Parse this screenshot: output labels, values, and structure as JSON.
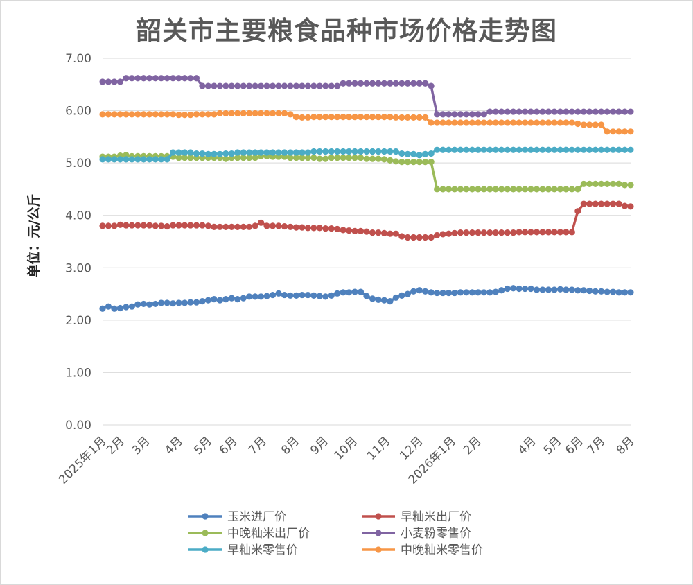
{
  "chart_data": {
    "type": "line",
    "title": "韶关市主要粮食品种市场价格走势图",
    "ylabel": "单位：元/公斤",
    "xlabel": "",
    "ylim": [
      0,
      7
    ],
    "yticks": [
      "0.00",
      "1.00",
      "2.00",
      "3.00",
      "4.00",
      "5.00",
      "6.00",
      "7.00"
    ],
    "xticks": [
      "2025年1月",
      "2月",
      "3月",
      "4月",
      "5月",
      "6月",
      "7月",
      "8月",
      "9月",
      "10月",
      "11月",
      "12月",
      "2026年1月",
      "2月",
      "4月",
      "5月",
      "6月",
      "7月",
      "8月"
    ],
    "grid": true,
    "legend_position": "bottom",
    "points_per_series": 91,
    "series": [
      {
        "name": "玉米进厂价",
        "color": "#4f81bd",
        "values": [
          2.22,
          2.26,
          2.22,
          2.23,
          2.25,
          2.26,
          2.3,
          2.31,
          2.3,
          2.31,
          2.33,
          2.33,
          2.32,
          2.33,
          2.33,
          2.34,
          2.34,
          2.36,
          2.38,
          2.4,
          2.38,
          2.4,
          2.42,
          2.4,
          2.42,
          2.45,
          2.45,
          2.45,
          2.46,
          2.48,
          2.51,
          2.48,
          2.47,
          2.47,
          2.48,
          2.48,
          2.47,
          2.46,
          2.45,
          2.47,
          2.51,
          2.53,
          2.53,
          2.54,
          2.54,
          2.46,
          2.41,
          2.39,
          2.38,
          2.36,
          2.43,
          2.47,
          2.5,
          2.55,
          2.57,
          2.55,
          2.53,
          2.52,
          2.52,
          2.52,
          2.52,
          2.53,
          2.53,
          2.53,
          2.53,
          2.53,
          2.53,
          2.54,
          2.57,
          2.6,
          2.61,
          2.6,
          2.6,
          2.6,
          2.58,
          2.58,
          2.58,
          2.58,
          2.59,
          2.58,
          2.58,
          2.57,
          2.57,
          2.56,
          2.55,
          2.55,
          2.54,
          2.54,
          2.53,
          2.53,
          2.53
        ]
      },
      {
        "name": "早籼米出厂价",
        "color": "#c0504d",
        "values": [
          3.8,
          3.8,
          3.8,
          3.82,
          3.81,
          3.81,
          3.81,
          3.81,
          3.81,
          3.8,
          3.8,
          3.79,
          3.81,
          3.81,
          3.81,
          3.81,
          3.81,
          3.81,
          3.8,
          3.78,
          3.78,
          3.78,
          3.78,
          3.78,
          3.78,
          3.78,
          3.8,
          3.86,
          3.8,
          3.8,
          3.8,
          3.79,
          3.78,
          3.77,
          3.77,
          3.76,
          3.76,
          3.76,
          3.75,
          3.75,
          3.74,
          3.72,
          3.71,
          3.7,
          3.7,
          3.69,
          3.67,
          3.67,
          3.66,
          3.65,
          3.65,
          3.6,
          3.58,
          3.58,
          3.58,
          3.58,
          3.58,
          3.62,
          3.64,
          3.65,
          3.66,
          3.67,
          3.67,
          3.67,
          3.67,
          3.67,
          3.67,
          3.67,
          3.67,
          3.67,
          3.67,
          3.68,
          3.68,
          3.68,
          3.68,
          3.68,
          3.68,
          3.68,
          3.68,
          3.68,
          3.68,
          4.08,
          4.22,
          4.22,
          4.22,
          4.22,
          4.22,
          4.22,
          4.22,
          4.18,
          4.17
        ]
      },
      {
        "name": "中晚籼米出厂价",
        "color": "#9bbb59",
        "values": [
          5.12,
          5.12,
          5.12,
          5.14,
          5.15,
          5.13,
          5.13,
          5.13,
          5.13,
          5.13,
          5.13,
          5.13,
          5.12,
          5.1,
          5.1,
          5.1,
          5.1,
          5.1,
          5.1,
          5.1,
          5.1,
          5.08,
          5.1,
          5.1,
          5.1,
          5.1,
          5.1,
          5.13,
          5.13,
          5.12,
          5.12,
          5.12,
          5.1,
          5.1,
          5.1,
          5.1,
          5.1,
          5.08,
          5.08,
          5.1,
          5.1,
          5.1,
          5.1,
          5.1,
          5.1,
          5.08,
          5.08,
          5.08,
          5.07,
          5.05,
          5.03,
          5.02,
          5.02,
          5.02,
          5.02,
          5.02,
          5.02,
          4.5,
          4.5,
          4.5,
          4.5,
          4.5,
          4.5,
          4.5,
          4.5,
          4.5,
          4.5,
          4.5,
          4.5,
          4.5,
          4.5,
          4.5,
          4.5,
          4.5,
          4.5,
          4.5,
          4.5,
          4.5,
          4.5,
          4.5,
          4.5,
          4.5,
          4.6,
          4.6,
          4.6,
          4.6,
          4.6,
          4.6,
          4.6,
          4.58,
          4.58
        ]
      },
      {
        "name": "小麦粉零售价",
        "color": "#8064a2",
        "values": [
          6.55,
          6.55,
          6.55,
          6.55,
          6.62,
          6.62,
          6.62,
          6.62,
          6.62,
          6.62,
          6.62,
          6.62,
          6.62,
          6.62,
          6.62,
          6.62,
          6.62,
          6.47,
          6.47,
          6.47,
          6.47,
          6.47,
          6.47,
          6.47,
          6.47,
          6.47,
          6.47,
          6.47,
          6.47,
          6.47,
          6.47,
          6.47,
          6.47,
          6.47,
          6.47,
          6.47,
          6.47,
          6.47,
          6.47,
          6.47,
          6.47,
          6.52,
          6.52,
          6.52,
          6.52,
          6.52,
          6.52,
          6.52,
          6.52,
          6.52,
          6.52,
          6.52,
          6.52,
          6.52,
          6.52,
          6.52,
          6.47,
          5.93,
          5.93,
          5.93,
          5.93,
          5.93,
          5.93,
          5.93,
          5.93,
          5.93,
          5.98,
          5.98,
          5.98,
          5.98,
          5.98,
          5.98,
          5.98,
          5.98,
          5.98,
          5.98,
          5.98,
          5.98,
          5.98,
          5.98,
          5.98,
          5.98,
          5.98,
          5.98,
          5.98,
          5.98,
          5.98,
          5.98,
          5.98,
          5.98,
          5.98
        ]
      },
      {
        "name": "早籼米零售价",
        "color": "#4bacc6",
        "values": [
          5.07,
          5.07,
          5.07,
          5.07,
          5.07,
          5.07,
          5.07,
          5.07,
          5.07,
          5.07,
          5.07,
          5.07,
          5.2,
          5.2,
          5.2,
          5.2,
          5.18,
          5.18,
          5.17,
          5.17,
          5.17,
          5.18,
          5.18,
          5.2,
          5.2,
          5.2,
          5.2,
          5.2,
          5.2,
          5.2,
          5.2,
          5.2,
          5.2,
          5.2,
          5.2,
          5.2,
          5.22,
          5.22,
          5.22,
          5.22,
          5.22,
          5.22,
          5.22,
          5.22,
          5.22,
          5.22,
          5.22,
          5.22,
          5.22,
          5.22,
          5.22,
          5.18,
          5.17,
          5.17,
          5.15,
          5.17,
          5.18,
          5.25,
          5.25,
          5.25,
          5.25,
          5.25,
          5.25,
          5.25,
          5.25,
          5.25,
          5.25,
          5.25,
          5.25,
          5.25,
          5.25,
          5.25,
          5.25,
          5.25,
          5.25,
          5.25,
          5.25,
          5.25,
          5.25,
          5.25,
          5.25,
          5.25,
          5.25,
          5.25,
          5.25,
          5.25,
          5.25,
          5.25,
          5.25,
          5.25,
          5.25
        ]
      },
      {
        "name": "中晚籼米零售价",
        "color": "#f79646",
        "values": [
          5.93,
          5.93,
          5.93,
          5.93,
          5.93,
          5.93,
          5.93,
          5.93,
          5.93,
          5.93,
          5.93,
          5.93,
          5.93,
          5.92,
          5.92,
          5.92,
          5.93,
          5.93,
          5.93,
          5.93,
          5.95,
          5.95,
          5.95,
          5.95,
          5.95,
          5.95,
          5.95,
          5.95,
          5.95,
          5.95,
          5.95,
          5.95,
          5.93,
          5.88,
          5.87,
          5.87,
          5.88,
          5.88,
          5.88,
          5.88,
          5.88,
          5.88,
          5.88,
          5.88,
          5.88,
          5.88,
          5.88,
          5.88,
          5.88,
          5.88,
          5.87,
          5.87,
          5.87,
          5.87,
          5.87,
          5.87,
          5.77,
          5.77,
          5.77,
          5.77,
          5.77,
          5.77,
          5.77,
          5.77,
          5.77,
          5.77,
          5.77,
          5.77,
          5.77,
          5.77,
          5.77,
          5.77,
          5.77,
          5.77,
          5.77,
          5.77,
          5.77,
          5.77,
          5.77,
          5.77,
          5.77,
          5.75,
          5.73,
          5.73,
          5.73,
          5.73,
          5.6,
          5.6,
          5.6,
          5.6,
          5.6
        ]
      }
    ]
  }
}
